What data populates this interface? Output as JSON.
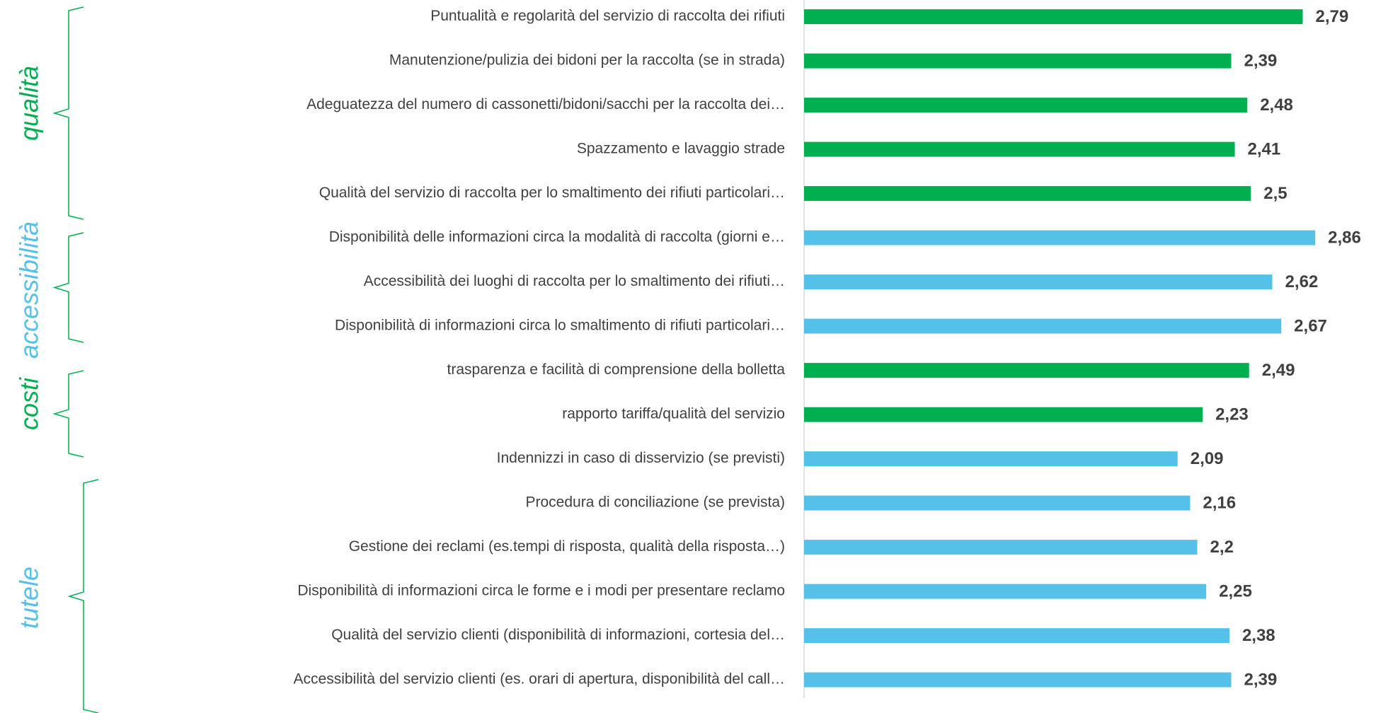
{
  "chart_data": {
    "type": "bar",
    "orientation": "horizontal",
    "categories": [
      "Puntualità e regolarità del servizio di raccolta dei rifiuti",
      "Manutenzione/pulizia dei bidoni per la raccolta (se in strada)",
      "Adeguatezza del numero di cassonetti/bidoni/sacchi per la raccolta dei…",
      "Spazzamento e lavaggio strade",
      "Qualità del servizio di raccolta per lo smaltimento dei rifiuti particolari…",
      "Disponibilità delle informazioni circa la modalità di raccolta (giorni e…",
      "Accessibilità  dei luoghi di raccolta per lo smaltimento dei rifiuti…",
      "Disponibilità di informazioni circa lo smaltimento di rifiuti particolari…",
      "trasparenza e facilità di comprensione della bolletta",
      "rapporto tariffa/qualità del servizio",
      "Indennizzi in caso di disservizio (se previsti)",
      "Procedura di conciliazione (se prevista)",
      "Gestione dei reclami (es.tempi di risposta, qualità della risposta…)",
      "Disponibilità di informazioni circa le forme e i modi per presentare reclamo",
      "Qualità del servizio clienti (disponibilità di informazioni, cortesia del…",
      "Accessibilità del servizio clienti (es. orari di apertura, disponibilità del call…"
    ],
    "values": [
      2.79,
      2.39,
      2.48,
      2.41,
      2.5,
      2.86,
      2.62,
      2.67,
      2.49,
      2.23,
      2.09,
      2.16,
      2.2,
      2.25,
      2.38,
      2.39
    ],
    "value_labels": [
      "2,79",
      "2,39",
      "2,48",
      "2,41",
      "2,5",
      "2,86",
      "2,62",
      "2,67",
      "2,49",
      "2,23",
      "2,09",
      "2,16",
      "2,2",
      "2,25",
      "2,38",
      "2,39"
    ],
    "colors": [
      "#00b050",
      "#00b050",
      "#00b050",
      "#00b050",
      "#00b050",
      "#56c1e8",
      "#56c1e8",
      "#56c1e8",
      "#00b050",
      "#00b050",
      "#56c1e8",
      "#56c1e8",
      "#56c1e8",
      "#56c1e8",
      "#56c1e8",
      "#56c1e8"
    ],
    "xlim": [
      0,
      3.2
    ],
    "groups": [
      {
        "label": "qualità",
        "color": "#00b050"
      },
      {
        "label": "accessibilità",
        "color": "#56c1e8"
      },
      {
        "label": "costi",
        "color": "#00b050"
      },
      {
        "label": "tutele",
        "color": "#56c1e8"
      }
    ]
  }
}
